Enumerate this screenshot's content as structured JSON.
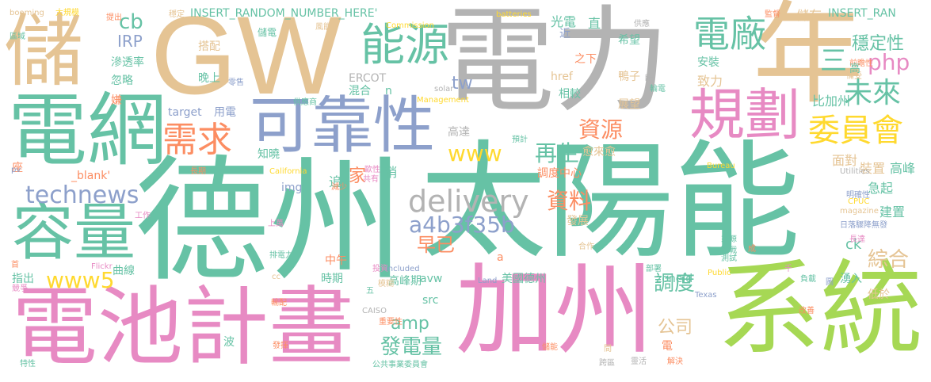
{
  "palette": {
    "teal": "#66c2a5",
    "orange": "#fc8d62",
    "blue": "#8da0cb",
    "pink": "#e78ac3",
    "green": "#a6d854",
    "yellow": "#ffd92f",
    "tan": "#e5c494",
    "gray": "#b3b3b3"
  },
  "words": [
    {
      "t": "德州",
      "c": "#66c2a5"
    },
    {
      "t": "太陽能",
      "c": "#66c2a5"
    },
    {
      "t": "電力",
      "c": "#b3b3b3"
    },
    {
      "t": "GW",
      "c": "#e5c494"
    },
    {
      "t": "年",
      "c": "#e5c494"
    },
    {
      "t": "加州",
      "c": "#e78ac3"
    },
    {
      "t": "系統",
      "c": "#a6d854"
    },
    {
      "t": "電池計畫",
      "c": "#e78ac3"
    },
    {
      "t": "電網",
      "c": "#66c2a5"
    },
    {
      "t": "儲",
      "c": "#e5c494"
    },
    {
      "t": "容量",
      "c": "#66c2a5"
    },
    {
      "t": "可靠性",
      "c": "#8da0cb"
    },
    {
      "t": "規劃",
      "c": "#e78ac3"
    },
    {
      "t": "能源",
      "c": "#66c2a5"
    },
    {
      "t": "電廠",
      "c": "#66c2a5"
    },
    {
      "t": "委員會",
      "c": "#ffd92f"
    },
    {
      "t": "需求",
      "c": "#fc8d62"
    },
    {
      "t": "未來",
      "c": "#66c2a5"
    },
    {
      "t": "technews",
      "c": "#8da0cb"
    },
    {
      "t": "delivery",
      "c": "#b3b3b3"
    },
    {
      "t": "www",
      "c": "#ffd92f"
    },
    {
      "t": "a4b3f35b",
      "c": "#8da0cb"
    },
    {
      "t": "www5",
      "c": "#ffd92f"
    },
    {
      "t": "資源",
      "c": "#fc8d62"
    },
    {
      "t": "再生",
      "c": "#66c2a5"
    },
    {
      "t": "資料",
      "c": "#fc8d62"
    },
    {
      "t": "早已",
      "c": "#fc8d62"
    },
    {
      "t": "php",
      "c": "#e78ac3"
    },
    {
      "t": "穩定性",
      "c": "#66c2a5"
    },
    {
      "t": "三",
      "c": "#66c2a5"
    },
    {
      "t": "調度",
      "c": "#66c2a5"
    },
    {
      "t": "發電量",
      "c": "#66c2a5"
    },
    {
      "t": "amp",
      "c": "#66c2a5"
    },
    {
      "t": "公司",
      "c": "#e5c494"
    },
    {
      "t": "綜合",
      "c": "#e5c494"
    },
    {
      "t": "cb",
      "c": "#66c2a5"
    },
    {
      "t": "IRP",
      "c": "#8da0cb"
    },
    {
      "t": "tw",
      "c": "#8da0cb"
    },
    {
      "t": "ck",
      "c": "#66c2a5"
    },
    {
      "t": "家",
      "c": "#fc8d62"
    },
    {
      "t": "INSERT_RANDOM_NUMBER_HERE'",
      "c": "#66c2a5"
    },
    {
      "t": "INSERT_RAN",
      "c": "#66c2a5"
    },
    {
      "t": "光電",
      "c": "#66c2a5"
    },
    {
      "t": "直",
      "c": "#66c2a5"
    },
    {
      "t": "儲存",
      "c": "#e5c494"
    },
    {
      "t": "近",
      "c": "#8da0cb"
    },
    {
      "t": "希望",
      "c": "#66c2a5"
    },
    {
      "t": "安裝",
      "c": "#66c2a5"
    },
    {
      "t": "鴨子",
      "c": "#e5c494"
    },
    {
      "t": "致力",
      "c": "#e5c494"
    },
    {
      "t": "之下",
      "c": "#fc8d62"
    },
    {
      "t": "相較",
      "c": "#66c2a5"
    },
    {
      "t": "展望",
      "c": "#e5c494"
    },
    {
      "t": "比加州",
      "c": "#66c2a5"
    },
    {
      "t": "高達",
      "c": "#b3b3b3"
    },
    {
      "t": "愈來愈",
      "c": "#e5c494"
    },
    {
      "t": "調度中心",
      "c": "#fc8d62"
    },
    {
      "t": "面對",
      "c": "#e5c494"
    },
    {
      "t": "裝置",
      "c": "#e5c494"
    },
    {
      "t": "高峰",
      "c": "#66c2a5"
    },
    {
      "t": "急起",
      "c": "#66c2a5"
    },
    {
      "t": "建置",
      "c": "#66c2a5"
    },
    {
      "t": "知曉",
      "c": "#66c2a5"
    },
    {
      "t": "座",
      "c": "#fc8d62"
    },
    {
      "t": "_blank'",
      "c": "#fc8d62"
    },
    {
      "t": "晚上",
      "c": "#66c2a5"
    },
    {
      "t": "滲透率",
      "c": "#66c2a5"
    },
    {
      "t": "搭配",
      "c": "#e5c494"
    },
    {
      "t": "忽略",
      "c": "#66c2a5"
    },
    {
      "t": "target",
      "c": "#8da0cb"
    },
    {
      "t": "用電",
      "c": "#8da0cb"
    },
    {
      "t": "混合",
      "c": "#66c2a5"
    },
    {
      "t": "ERCOT",
      "c": "#b3b3b3"
    },
    {
      "t": "href",
      "c": "#e5c494"
    },
    {
      "t": "n",
      "c": "#66c2a5"
    },
    {
      "t": "img",
      "c": "#8da0cb"
    },
    {
      "t": "稍",
      "c": "#66c2a5"
    },
    {
      "t": "追",
      "c": "#66c2a5"
    },
    {
      "t": "發展",
      "c": "#e5c494"
    },
    {
      "t": "中午",
      "c": "#fc8d62"
    },
    {
      "t": "曲線",
      "c": "#66c2a5"
    },
    {
      "t": "指出",
      "c": "#66c2a5"
    },
    {
      "t": "時期",
      "c": "#66c2a5"
    },
    {
      "t": "avw",
      "c": "#66c2a5"
    },
    {
      "t": "高峰期",
      "c": "#66c2a5"
    },
    {
      "t": "美國德州",
      "c": "#66c2a5"
    },
    {
      "t": "zoneid",
      "c": "#66c2a5"
    },
    {
      "t": "src",
      "c": "#66c2a5"
    },
    {
      "t": "湧入",
      "c": "#66c2a5"
    },
    {
      "t": "低於",
      "c": "#e5c494"
    },
    {
      "t": "電",
      "c": "#fc8d62"
    },
    {
      "t": "波",
      "c": "#66c2a5"
    },
    {
      "t": "a",
      "c": "#fc8d62"
    },
    {
      "t": "嫌",
      "c": "#fc8d62"
    },
    {
      "t": "儲電",
      "c": "#66c2a5"
    },
    {
      "t": "booming",
      "c": "#e5c494"
    },
    {
      "t": "大規模",
      "c": "#ffd92f"
    },
    {
      "t": "區域",
      "c": "#66c2a5"
    },
    {
      "t": "提出",
      "c": "#fc8d62"
    },
    {
      "t": "穩定",
      "c": "#e5c494"
    },
    {
      "t": "Commission",
      "c": "#ffd92f"
    },
    {
      "t": "batteries",
      "c": "#ffd92f"
    },
    {
      "t": "監督",
      "c": "#fc8d62"
    },
    {
      "t": "供應",
      "c": "#b3b3b3"
    },
    {
      "t": "風能",
      "c": "#e5c494"
    },
    {
      "t": "前瞻性",
      "c": "#fc8d62"
    },
    {
      "t": "備受",
      "c": "#e5c494"
    },
    {
      "t": "高",
      "c": "#66c2a5"
    },
    {
      "t": "零售",
      "c": "#8da0cb"
    },
    {
      "t": "供應商",
      "c": "#66c2a5"
    },
    {
      "t": "盼",
      "c": "#b3b3b3"
    },
    {
      "t": "輪電",
      "c": "#66c2a5"
    },
    {
      "t": "solar",
      "c": "#b3b3b3"
    },
    {
      "t": "Management",
      "c": "#ffd92f"
    },
    {
      "t": "pv",
      "c": "#8da0cb"
    },
    {
      "t": "長期",
      "c": "#fc8d62"
    },
    {
      "t": "California",
      "c": "#ffd92f"
    },
    {
      "t": "歐性",
      "c": "#e78ac3"
    },
    {
      "t": "共有",
      "c": "#e78ac3"
    },
    {
      "t": "減少",
      "c": "#fc8d62"
    },
    {
      "t": "預計",
      "c": "#66c2a5"
    },
    {
      "t": "Bureau",
      "c": "#ffd92f"
    },
    {
      "t": "Utilities",
      "c": "#b3b3b3"
    },
    {
      "t": "明確性",
      "c": "#8da0cb"
    },
    {
      "t": "CPUC",
      "c": "#ffd92f"
    },
    {
      "t": "magazine",
      "c": "#e5c494"
    },
    {
      "t": "日落驟降無發",
      "c": "#8da0cb"
    },
    {
      "t": "工作",
      "c": "#e78ac3"
    },
    {
      "t": "上萬",
      "c": "#e78ac3"
    },
    {
      "t": "來源",
      "c": "#66c2a5"
    },
    {
      "t": "成",
      "c": "#fc8d62"
    },
    {
      "t": "長達",
      "c": "#e78ac3"
    },
    {
      "t": "測試",
      "c": "#66c2a5"
    },
    {
      "t": "挑戰",
      "c": "#66c2a5"
    },
    {
      "t": "排電力",
      "c": "#66c2a5"
    },
    {
      "t": "合作",
      "c": "#e5c494"
    },
    {
      "t": "部署",
      "c": "#66c2a5"
    },
    {
      "t": "Flickr",
      "c": "#e78ac3"
    },
    {
      "t": "首",
      "c": "#fc8d62"
    },
    {
      "t": "競爭",
      "c": "#e78ac3"
    },
    {
      "t": "投資",
      "c": "#e78ac3"
    },
    {
      "t": "cc",
      "c": "#e5c494"
    },
    {
      "t": "included",
      "c": "#8da0cb"
    },
    {
      "t": "Land",
      "c": "#8da0cb"
    },
    {
      "t": "Public",
      "c": "#ffd92f"
    },
    {
      "t": "負載",
      "c": "#66c2a5"
    },
    {
      "t": "千",
      "c": "#e78ac3"
    },
    {
      "t": "模糊",
      "c": "#e5c494"
    },
    {
      "t": "五",
      "c": "#66c2a5"
    },
    {
      "t": "輸配",
      "c": "#fc8d62"
    },
    {
      "t": "CAISO",
      "c": "#b3b3b3"
    },
    {
      "t": "重要性",
      "c": "#fc8d62"
    },
    {
      "t": "Texas",
      "c": "#8da0cb"
    },
    {
      "t": "改善",
      "c": "#fc8d62"
    },
    {
      "t": "圖",
      "c": "#8da0cb"
    },
    {
      "t": "特性",
      "c": "#66c2a5"
    },
    {
      "t": "發揮",
      "c": "#fc8d62"
    },
    {
      "t": "公共事業委員會",
      "c": "#66c2a5"
    },
    {
      "t": "儲能",
      "c": "#fc8d62"
    },
    {
      "t": "間",
      "c": "#e5c494"
    },
    {
      "t": "跨區",
      "c": "#b3b3b3"
    },
    {
      "t": "靈活",
      "c": "#b3b3b3"
    },
    {
      "t": "解決",
      "c": "#fc8d62"
    }
  ]
}
